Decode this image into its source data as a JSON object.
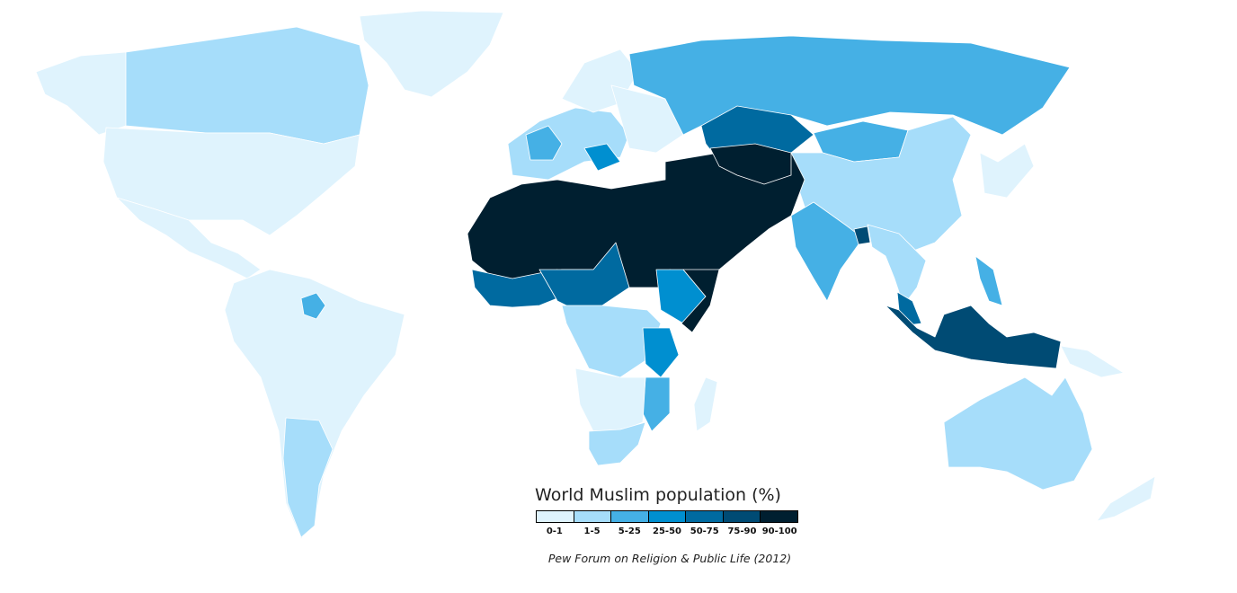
{
  "title": "World Muslim population (%)",
  "source": "Pew Forum on Religion & Public Life (2012)",
  "legend": [
    {
      "label": "0-1",
      "color": "#dff3fd"
    },
    {
      "label": "1-5",
      "color": "#a6ddfa"
    },
    {
      "label": "5-25",
      "color": "#45b0e5"
    },
    {
      "label": "25-50",
      "color": "#008fd0"
    },
    {
      "label": "50-75",
      "color": "#006aa0"
    },
    {
      "label": "75-90",
      "color": "#004b74"
    },
    {
      "label": "90-100",
      "color": "#001f30"
    }
  ],
  "regions": [
    {
      "name": "greenland",
      "bin": 0
    },
    {
      "name": "alaska-north",
      "bin": 0
    },
    {
      "name": "canada",
      "bin": 1
    },
    {
      "name": "united-states",
      "bin": 0
    },
    {
      "name": "mexico-central-america",
      "bin": 0
    },
    {
      "name": "south-america",
      "bin": 0
    },
    {
      "name": "argentina",
      "bin": 1
    },
    {
      "name": "suriname",
      "bin": 2
    },
    {
      "name": "western-europe",
      "bin": 1
    },
    {
      "name": "france",
      "bin": 2
    },
    {
      "name": "scandinavia",
      "bin": 0
    },
    {
      "name": "eastern-europe",
      "bin": 0
    },
    {
      "name": "balkans",
      "bin": 3
    },
    {
      "name": "russia",
      "bin": 2
    },
    {
      "name": "kazakhstan",
      "bin": 4
    },
    {
      "name": "mongolia",
      "bin": 2
    },
    {
      "name": "china",
      "bin": 1
    },
    {
      "name": "japan-korea",
      "bin": 0
    },
    {
      "name": "middle-east-north-africa",
      "bin": 6
    },
    {
      "name": "central-asia",
      "bin": 6
    },
    {
      "name": "india",
      "bin": 2
    },
    {
      "name": "bangladesh",
      "bin": 5
    },
    {
      "name": "southeast-asia",
      "bin": 1
    },
    {
      "name": "malaysia",
      "bin": 4
    },
    {
      "name": "indonesia",
      "bin": 5
    },
    {
      "name": "philippines",
      "bin": 2
    },
    {
      "name": "west-africa",
      "bin": 4
    },
    {
      "name": "nigeria-chad-region",
      "bin": 4
    },
    {
      "name": "ethiopia",
      "bin": 3
    },
    {
      "name": "somalia",
      "bin": 6
    },
    {
      "name": "central-africa",
      "bin": 1
    },
    {
      "name": "tanzania",
      "bin": 3
    },
    {
      "name": "mozambique",
      "bin": 2
    },
    {
      "name": "southern-africa",
      "bin": 0
    },
    {
      "name": "south-africa",
      "bin": 1
    },
    {
      "name": "madagascar",
      "bin": 0
    },
    {
      "name": "australia",
      "bin": 1
    },
    {
      "name": "papua",
      "bin": 0
    },
    {
      "name": "new-zealand",
      "bin": 0
    }
  ]
}
